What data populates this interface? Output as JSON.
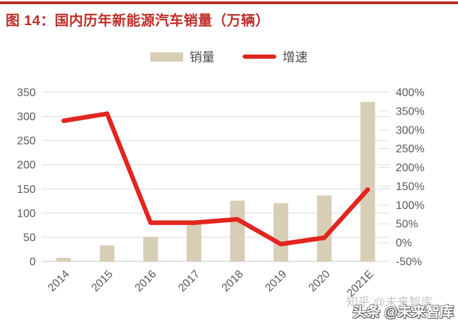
{
  "header": {
    "title": "图 14：国内历年新能源汽车销量（万辆）",
    "accent_color": "#BE2D28"
  },
  "legend": {
    "items": [
      {
        "label": "销量",
        "swatch": "bar",
        "color": "#D7CEB5"
      },
      {
        "label": "增速",
        "swatch": "line",
        "color": "#E2261F"
      }
    ]
  },
  "chart_data": {
    "type": "combo-bar-line",
    "title": "国内历年新能源汽车销量（万辆）",
    "categories": [
      "2014",
      "2015",
      "2016",
      "2017",
      "2018",
      "2019",
      "2020",
      "2021E"
    ],
    "series": [
      {
        "name": "销量",
        "chart": "bar",
        "axis": "left",
        "color": "#D7CEB5",
        "values": [
          7.5,
          33,
          50.7,
          77.7,
          125.6,
          120.6,
          136.7,
          330
        ]
      },
      {
        "name": "增速",
        "chart": "line",
        "axis": "right",
        "unit": "%",
        "color": "#E2261F",
        "values": [
          324,
          343,
          53,
          53,
          62,
          -4,
          13,
          141
        ]
      }
    ],
    "left_axis": {
      "min": 0,
      "max": 350,
      "step": 50,
      "tick_labels": [
        "0",
        "50",
        "100",
        "150",
        "200",
        "250",
        "300",
        "350"
      ]
    },
    "right_axis": {
      "min": -50,
      "max": 400,
      "step": 50,
      "tick_labels": [
        "-50%",
        "0%",
        "50%",
        "100%",
        "150%",
        "200%",
        "250%",
        "300%",
        "350%",
        "400%"
      ]
    },
    "grid": "horizontal",
    "legend_position": "top",
    "x_label_rotation": -45
  },
  "watermark": {
    "back": "知乎 @未来智库",
    "front": "头条 @未来智库"
  }
}
